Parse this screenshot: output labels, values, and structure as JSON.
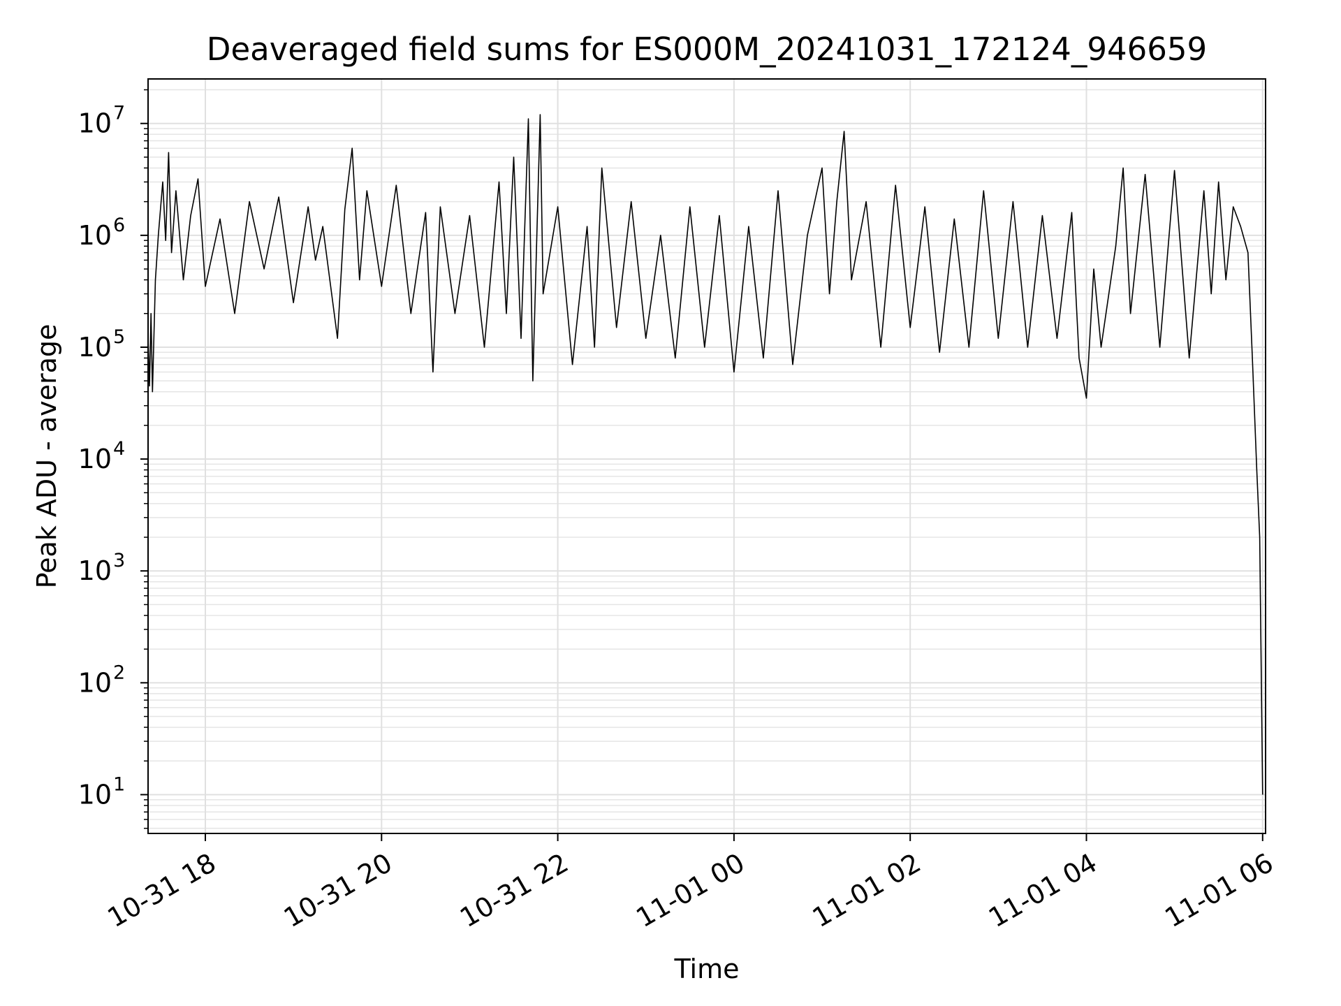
{
  "chart_data": {
    "type": "line",
    "title": "Deaveraged field sums for ES000M_20241031_172124_946659",
    "xlabel": "Time",
    "ylabel": "Peak ADU - average",
    "x_scale": "time",
    "y_scale": "log",
    "xlim": [
      "2024-10-31 17:21",
      "2024-11-01 06:02"
    ],
    "ylim": [
      4.5,
      25000000
    ],
    "x_ticks": [
      {
        "time": "2024-10-31 18:00",
        "label": "10-31 18"
      },
      {
        "time": "2024-10-31 20:00",
        "label": "10-31 20"
      },
      {
        "time": "2024-10-31 22:00",
        "label": "10-31 22"
      },
      {
        "time": "2024-11-01 00:00",
        "label": "11-01 00"
      },
      {
        "time": "2024-11-01 02:00",
        "label": "11-01 02"
      },
      {
        "time": "2024-11-01 04:00",
        "label": "11-01 04"
      },
      {
        "time": "2024-11-01 06:00",
        "label": "11-01 06"
      }
    ],
    "y_ticks": [
      {
        "value": 10,
        "base": "10",
        "exp": "1"
      },
      {
        "value": 100,
        "base": "10",
        "exp": "2"
      },
      {
        "value": 1000,
        "base": "10",
        "exp": "3"
      },
      {
        "value": 10000,
        "base": "10",
        "exp": "4"
      },
      {
        "value": 100000,
        "base": "10",
        "exp": "5"
      },
      {
        "value": 1000000,
        "base": "10",
        "exp": "6"
      },
      {
        "value": 10000000,
        "base": "10",
        "exp": "7"
      }
    ],
    "grid": true,
    "line_color": "#000000",
    "series": [
      {
        "points": [
          [
            "2024-10-31 17:21",
            120000
          ],
          [
            "2024-10-31 17:22",
            45000
          ],
          [
            "2024-10-31 17:23",
            200000
          ],
          [
            "2024-10-31 17:24",
            40000
          ],
          [
            "2024-10-31 17:26",
            400000
          ],
          [
            "2024-10-31 17:28",
            1000000
          ],
          [
            "2024-10-31 17:31",
            3000000
          ],
          [
            "2024-10-31 17:33",
            900000
          ],
          [
            "2024-10-31 17:35",
            5500000
          ],
          [
            "2024-10-31 17:37",
            700000
          ],
          [
            "2024-10-31 17:40",
            2500000
          ],
          [
            "2024-10-31 17:45",
            400000
          ],
          [
            "2024-10-31 17:50",
            1500000
          ],
          [
            "2024-10-31 17:55",
            3200000
          ],
          [
            "2024-10-31 18:00",
            350000
          ],
          [
            "2024-10-31 18:10",
            1400000
          ],
          [
            "2024-10-31 18:20",
            200000
          ],
          [
            "2024-10-31 18:30",
            2000000
          ],
          [
            "2024-10-31 18:40",
            500000
          ],
          [
            "2024-10-31 18:50",
            2200000
          ],
          [
            "2024-10-31 19:00",
            250000
          ],
          [
            "2024-10-31 19:10",
            1800000
          ],
          [
            "2024-10-31 19:15",
            600000
          ],
          [
            "2024-10-31 19:20",
            1200000
          ],
          [
            "2024-10-31 19:30",
            120000
          ],
          [
            "2024-10-31 19:35",
            1700000
          ],
          [
            "2024-10-31 19:40",
            6000000
          ],
          [
            "2024-10-31 19:45",
            400000
          ],
          [
            "2024-10-31 19:50",
            2500000
          ],
          [
            "2024-10-31 20:00",
            350000
          ],
          [
            "2024-10-31 20:10",
            2800000
          ],
          [
            "2024-10-31 20:20",
            200000
          ],
          [
            "2024-10-31 20:30",
            1600000
          ],
          [
            "2024-10-31 20:35",
            60000
          ],
          [
            "2024-10-31 20:40",
            1800000
          ],
          [
            "2024-10-31 20:50",
            200000
          ],
          [
            "2024-10-31 21:00",
            1500000
          ],
          [
            "2024-10-31 21:10",
            100000
          ],
          [
            "2024-10-31 21:20",
            3000000
          ],
          [
            "2024-10-31 21:25",
            200000
          ],
          [
            "2024-10-31 21:30",
            5000000
          ],
          [
            "2024-10-31 21:35",
            120000
          ],
          [
            "2024-10-31 21:40",
            11000000
          ],
          [
            "2024-10-31 21:43",
            50000
          ],
          [
            "2024-10-31 21:48",
            12000000
          ],
          [
            "2024-10-31 21:50",
            300000
          ],
          [
            "2024-10-31 22:00",
            1800000
          ],
          [
            "2024-10-31 22:10",
            70000
          ],
          [
            "2024-10-31 22:20",
            1200000
          ],
          [
            "2024-10-31 22:25",
            100000
          ],
          [
            "2024-10-31 22:30",
            4000000
          ],
          [
            "2024-10-31 22:40",
            150000
          ],
          [
            "2024-10-31 22:50",
            2000000
          ],
          [
            "2024-10-31 23:00",
            120000
          ],
          [
            "2024-10-31 23:10",
            1000000
          ],
          [
            "2024-10-31 23:20",
            80000
          ],
          [
            "2024-10-31 23:30",
            1800000
          ],
          [
            "2024-10-31 23:40",
            100000
          ],
          [
            "2024-10-31 23:50",
            1500000
          ],
          [
            "2024-11-01 00:00",
            60000
          ],
          [
            "2024-11-01 00:10",
            1200000
          ],
          [
            "2024-11-01 00:20",
            80000
          ],
          [
            "2024-11-01 00:30",
            2500000
          ],
          [
            "2024-11-01 00:40",
            70000
          ],
          [
            "2024-11-01 00:50",
            1000000
          ],
          [
            "2024-11-01 01:00",
            4000000
          ],
          [
            "2024-11-01 01:05",
            300000
          ],
          [
            "2024-11-01 01:10",
            2000000
          ],
          [
            "2024-11-01 01:15",
            8500000
          ],
          [
            "2024-11-01 01:20",
            400000
          ],
          [
            "2024-11-01 01:30",
            2000000
          ],
          [
            "2024-11-01 01:40",
            100000
          ],
          [
            "2024-11-01 01:50",
            2800000
          ],
          [
            "2024-11-01 02:00",
            150000
          ],
          [
            "2024-11-01 02:10",
            1800000
          ],
          [
            "2024-11-01 02:20",
            90000
          ],
          [
            "2024-11-01 02:30",
            1400000
          ],
          [
            "2024-11-01 02:40",
            100000
          ],
          [
            "2024-11-01 02:50",
            2500000
          ],
          [
            "2024-11-01 03:00",
            120000
          ],
          [
            "2024-11-01 03:10",
            2000000
          ],
          [
            "2024-11-01 03:20",
            100000
          ],
          [
            "2024-11-01 03:30",
            1500000
          ],
          [
            "2024-11-01 03:40",
            120000
          ],
          [
            "2024-11-01 03:50",
            1600000
          ],
          [
            "2024-11-01 03:55",
            80000
          ],
          [
            "2024-11-01 04:00",
            35000
          ],
          [
            "2024-11-01 04:05",
            500000
          ],
          [
            "2024-11-01 04:10",
            100000
          ],
          [
            "2024-11-01 04:20",
            800000
          ],
          [
            "2024-11-01 04:25",
            4000000
          ],
          [
            "2024-11-01 04:30",
            200000
          ],
          [
            "2024-11-01 04:40",
            3500000
          ],
          [
            "2024-11-01 04:50",
            100000
          ],
          [
            "2024-11-01 05:00",
            3800000
          ],
          [
            "2024-11-01 05:10",
            80000
          ],
          [
            "2024-11-01 05:20",
            2500000
          ],
          [
            "2024-11-01 05:25",
            300000
          ],
          [
            "2024-11-01 05:30",
            3000000
          ],
          [
            "2024-11-01 05:35",
            400000
          ],
          [
            "2024-11-01 05:40",
            1800000
          ],
          [
            "2024-11-01 05:45",
            1200000
          ],
          [
            "2024-11-01 05:50",
            700000
          ],
          [
            "2024-11-01 05:53",
            80000
          ],
          [
            "2024-11-01 05:56",
            8000
          ],
          [
            "2024-11-01 05:58",
            2000
          ],
          [
            "2024-11-01 06:00",
            10
          ]
        ]
      }
    ]
  }
}
